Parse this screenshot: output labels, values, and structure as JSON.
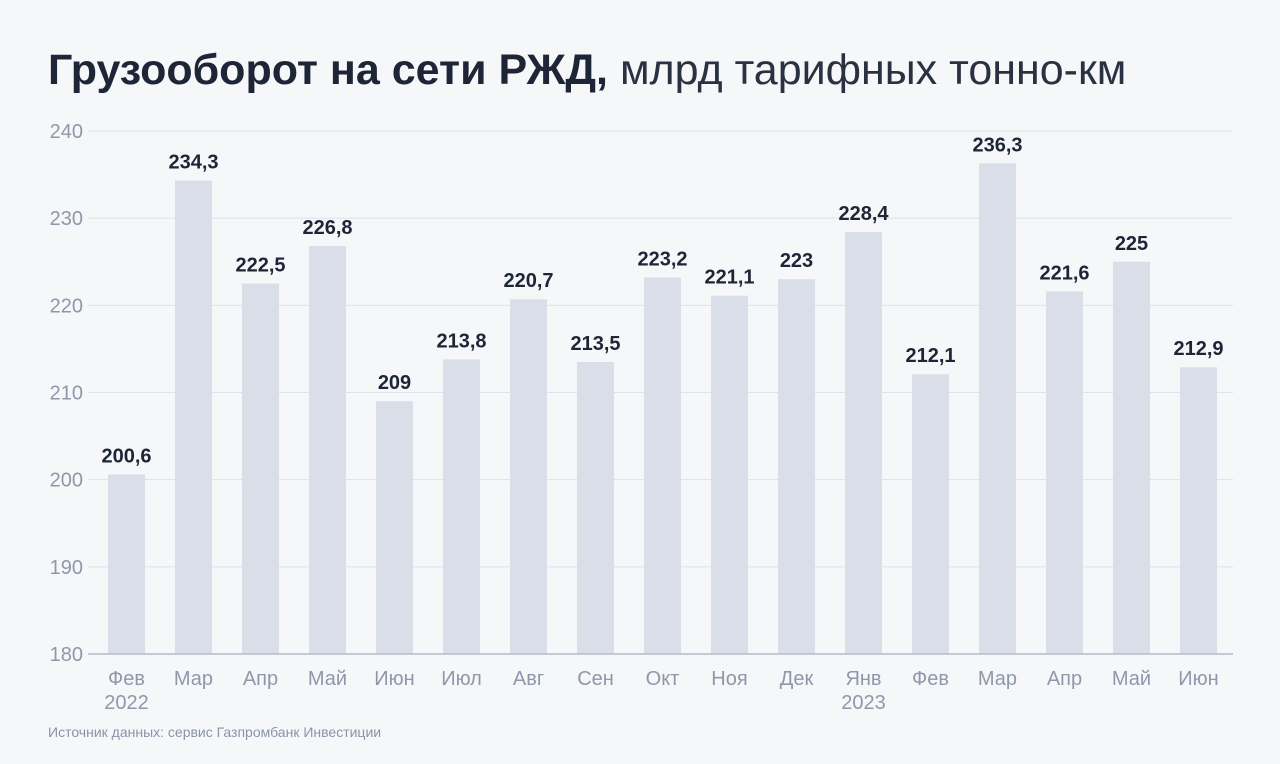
{
  "header": {
    "title_bold": "Грузооборот на сети РЖД,",
    "title_rest": "млрд тарифных тонно-км"
  },
  "footer": {
    "source": "Источник данных: сервис Газпромбанк Инвестиции"
  },
  "colors": {
    "bar": "#d9dee8",
    "grid": "#dde2ec",
    "axis": "#b4bccb",
    "tick_label": "#8f98ab",
    "value_label": "#1e2537",
    "background": "#f6f7f9"
  },
  "chart_data": {
    "type": "bar",
    "title": "Грузооборот на сети РЖД, млрд тарифных тонно-км",
    "categories": [
      "Фев",
      "Мар",
      "Апр",
      "Май",
      "Июн",
      "Июл",
      "Авг",
      "Сен",
      "Окт",
      "Ноя",
      "Дек",
      "Янв",
      "Фев",
      "Мар",
      "Апр",
      "Май",
      "Июн"
    ],
    "category_sublabels": [
      "2022",
      "",
      "",
      "",
      "",
      "",
      "",
      "",
      "",
      "",
      "",
      "2023",
      "",
      "",
      "",
      "",
      ""
    ],
    "values": [
      200.6,
      234.3,
      222.5,
      226.8,
      209,
      213.8,
      220.7,
      213.5,
      223.2,
      221.1,
      223,
      228.4,
      212.1,
      236.3,
      221.6,
      225,
      212.9
    ],
    "value_labels": [
      "200,6",
      "234,3",
      "222,5",
      "226,8",
      "209",
      "213,8",
      "220,7",
      "213,5",
      "223,2",
      "221,1",
      "223",
      "228,4",
      "212,1",
      "236,3",
      "221,6",
      "225",
      "212,9"
    ],
    "yticks": [
      180,
      190,
      200,
      210,
      220,
      230,
      240
    ],
    "ylim": [
      180,
      240
    ],
    "xlabel": "",
    "ylabel": "",
    "grid": true,
    "legend": "none"
  }
}
